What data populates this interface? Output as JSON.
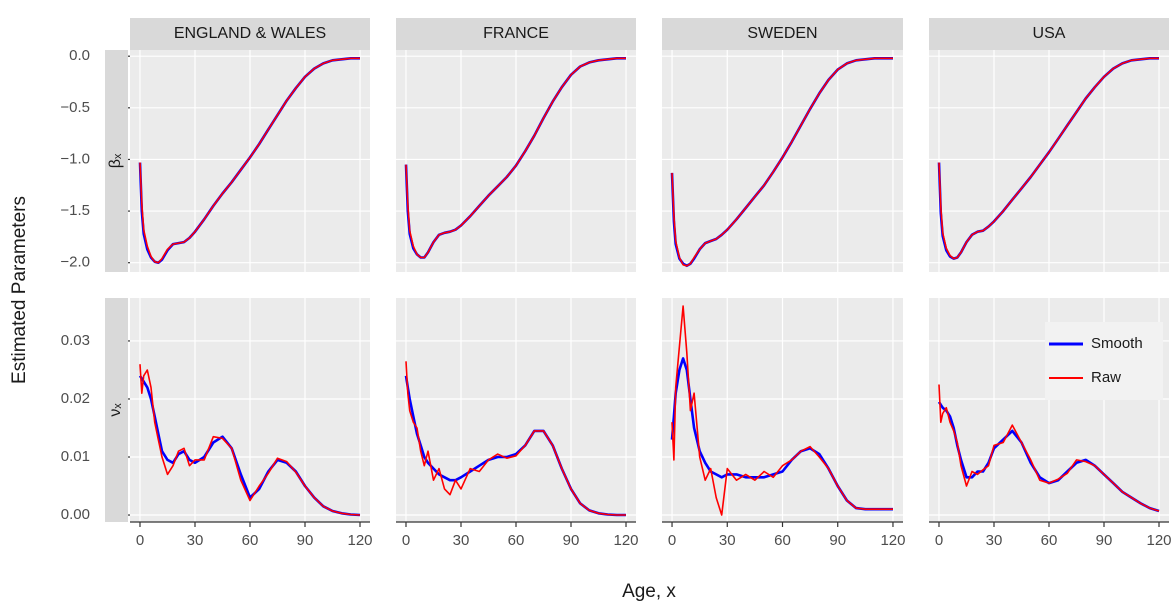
{
  "x_label": "Age, x",
  "y_label": "Estimated Parameters",
  "chart_data": [
    {
      "type": "line",
      "title": "ENGLAND & WALES",
      "row_label": "βₓ",
      "grid": true,
      "x": [
        0,
        1,
        2,
        4,
        6,
        8,
        10,
        12,
        15,
        18,
        21,
        24,
        27,
        30,
        35,
        40,
        45,
        50,
        55,
        60,
        65,
        70,
        75,
        80,
        85,
        90,
        95,
        100,
        105,
        110,
        115,
        120
      ],
      "xlim": [
        -5.45,
        125.45
      ],
      "ylim": [
        -2.09,
        0.06
      ],
      "xticks": [
        0,
        30,
        60,
        90,
        120
      ],
      "yticks": [
        {
          "value": -2,
          "label": "−2.0"
        },
        {
          "value": -1.5,
          "label": "−1.5"
        },
        {
          "value": -1,
          "label": "−1.0"
        },
        {
          "value": -0.5,
          "label": "−0.5"
        },
        {
          "value": 0,
          "label": "0.0"
        }
      ],
      "series": [
        {
          "color": "#0000ff",
          "values": [
            -1.03,
            -1.5,
            -1.72,
            -1.87,
            -1.95,
            -1.99,
            -2.0,
            -1.97,
            -1.88,
            -1.82,
            -1.81,
            -1.8,
            -1.76,
            -1.7,
            -1.58,
            -1.45,
            -1.33,
            -1.22,
            -1.1,
            -0.98,
            -0.85,
            -0.71,
            -0.57,
            -0.43,
            -0.31,
            -0.2,
            -0.12,
            -0.07,
            -0.04,
            -0.03,
            -0.02,
            -0.02
          ]
        },
        {
          "color": "#ff0000",
          "values": [
            -1.03,
            -1.43,
            -1.68,
            -1.84,
            -1.94,
            -1.99,
            -2.0,
            -1.96,
            -1.87,
            -1.82,
            -1.81,
            -1.8,
            -1.76,
            -1.7,
            -1.58,
            -1.45,
            -1.33,
            -1.22,
            -1.1,
            -0.98,
            -0.85,
            -0.71,
            -0.57,
            -0.43,
            -0.31,
            -0.2,
            -0.12,
            -0.07,
            -0.04,
            -0.03,
            -0.02,
            -0.02
          ]
        }
      ]
    },
    {
      "type": "line",
      "title": "FRANCE",
      "grid": true,
      "x": [
        0,
        1,
        2,
        4,
        6,
        8,
        10,
        12,
        15,
        18,
        21,
        24,
        27,
        30,
        35,
        40,
        45,
        50,
        55,
        60,
        65,
        70,
        75,
        80,
        85,
        90,
        95,
        100,
        105,
        110,
        115,
        120
      ],
      "xlim": [
        -5.45,
        125.45
      ],
      "ylim": [
        -2.09,
        0.06
      ],
      "xticks": [
        0,
        30,
        60,
        90,
        120
      ],
      "yticks": [
        {
          "value": -2,
          "label": "−2.0"
        },
        {
          "value": -1.5,
          "label": "−1.5"
        },
        {
          "value": -1,
          "label": "−1.0"
        },
        {
          "value": -0.5,
          "label": "−0.5"
        },
        {
          "value": 0,
          "label": "0.0"
        }
      ],
      "series": [
        {
          "color": "#0000ff",
          "values": [
            -1.05,
            -1.5,
            -1.72,
            -1.86,
            -1.92,
            -1.95,
            -1.95,
            -1.9,
            -1.8,
            -1.73,
            -1.71,
            -1.7,
            -1.68,
            -1.64,
            -1.55,
            -1.45,
            -1.35,
            -1.26,
            -1.17,
            -1.06,
            -0.92,
            -0.77,
            -0.6,
            -0.44,
            -0.3,
            -0.18,
            -0.1,
            -0.06,
            -0.04,
            -0.03,
            -0.02,
            -0.02
          ]
        },
        {
          "color": "#ff0000",
          "values": [
            -1.05,
            -1.44,
            -1.69,
            -1.84,
            -1.92,
            -1.95,
            -1.95,
            -1.9,
            -1.8,
            -1.73,
            -1.71,
            -1.7,
            -1.68,
            -1.64,
            -1.55,
            -1.45,
            -1.35,
            -1.26,
            -1.17,
            -1.06,
            -0.92,
            -0.77,
            -0.6,
            -0.44,
            -0.3,
            -0.18,
            -0.1,
            -0.06,
            -0.04,
            -0.03,
            -0.02,
            -0.02
          ]
        }
      ]
    },
    {
      "type": "line",
      "title": "SWEDEN",
      "grid": true,
      "x": [
        0,
        1,
        2,
        4,
        6,
        8,
        10,
        12,
        15,
        18,
        21,
        24,
        27,
        30,
        35,
        40,
        45,
        50,
        55,
        60,
        65,
        70,
        75,
        80,
        85,
        90,
        95,
        100,
        105,
        110,
        115,
        120
      ],
      "xlim": [
        -5.45,
        125.45
      ],
      "ylim": [
        -2.09,
        0.06
      ],
      "xticks": [
        0,
        30,
        60,
        90,
        120
      ],
      "yticks": [
        {
          "value": -2,
          "label": "−2.0"
        },
        {
          "value": -1.5,
          "label": "−1.5"
        },
        {
          "value": -1,
          "label": "−1.0"
        },
        {
          "value": -0.5,
          "label": "−0.5"
        },
        {
          "value": 0,
          "label": "0.0"
        }
      ],
      "series": [
        {
          "color": "#0000ff",
          "values": [
            -1.13,
            -1.6,
            -1.82,
            -1.96,
            -2.01,
            -2.03,
            -2.01,
            -1.96,
            -1.87,
            -1.81,
            -1.79,
            -1.77,
            -1.73,
            -1.68,
            -1.58,
            -1.47,
            -1.36,
            -1.25,
            -1.12,
            -0.98,
            -0.83,
            -0.67,
            -0.51,
            -0.36,
            -0.23,
            -0.13,
            -0.07,
            -0.04,
            -0.03,
            -0.02,
            -0.02,
            -0.02
          ]
        },
        {
          "color": "#ff0000",
          "values": [
            -1.13,
            -1.55,
            -1.79,
            -1.95,
            -2.02,
            -2.03,
            -2.01,
            -1.95,
            -1.87,
            -1.81,
            -1.79,
            -1.77,
            -1.73,
            -1.68,
            -1.58,
            -1.47,
            -1.36,
            -1.25,
            -1.12,
            -0.98,
            -0.83,
            -0.67,
            -0.51,
            -0.36,
            -0.23,
            -0.13,
            -0.07,
            -0.04,
            -0.03,
            -0.02,
            -0.02,
            -0.02
          ]
        }
      ]
    },
    {
      "type": "line",
      "title": "USA",
      "grid": true,
      "x": [
        0,
        1,
        2,
        4,
        6,
        8,
        10,
        12,
        15,
        18,
        21,
        24,
        27,
        30,
        35,
        40,
        45,
        50,
        55,
        60,
        65,
        70,
        75,
        80,
        85,
        90,
        95,
        100,
        105,
        110,
        115,
        120
      ],
      "xlim": [
        -5.45,
        125.45
      ],
      "ylim": [
        -2.09,
        0.06
      ],
      "xticks": [
        0,
        30,
        60,
        90,
        120
      ],
      "yticks": [
        {
          "value": -2,
          "label": "−2.0"
        },
        {
          "value": -1.5,
          "label": "−1.5"
        },
        {
          "value": -1,
          "label": "−1.0"
        },
        {
          "value": -0.5,
          "label": "−0.5"
        },
        {
          "value": 0,
          "label": "0.0"
        }
      ],
      "series": [
        {
          "color": "#0000ff",
          "values": [
            -1.03,
            -1.52,
            -1.74,
            -1.88,
            -1.94,
            -1.96,
            -1.95,
            -1.9,
            -1.8,
            -1.73,
            -1.7,
            -1.69,
            -1.65,
            -1.6,
            -1.5,
            -1.39,
            -1.28,
            -1.17,
            -1.05,
            -0.93,
            -0.8,
            -0.67,
            -0.54,
            -0.41,
            -0.3,
            -0.2,
            -0.12,
            -0.07,
            -0.04,
            -0.03,
            -0.02,
            -0.02
          ]
        },
        {
          "color": "#ff0000",
          "values": [
            -1.03,
            -1.46,
            -1.71,
            -1.86,
            -1.93,
            -1.96,
            -1.95,
            -1.9,
            -1.8,
            -1.73,
            -1.7,
            -1.69,
            -1.65,
            -1.6,
            -1.5,
            -1.39,
            -1.28,
            -1.17,
            -1.05,
            -0.93,
            -0.8,
            -0.67,
            -0.54,
            -0.41,
            -0.3,
            -0.2,
            -0.12,
            -0.07,
            -0.04,
            -0.03,
            -0.02,
            -0.02
          ]
        }
      ]
    },
    {
      "type": "line",
      "row_label": "νₓ",
      "grid": true,
      "x": [
        0,
        1,
        2,
        4,
        6,
        8,
        10,
        12,
        15,
        18,
        21,
        24,
        27,
        30,
        35,
        40,
        45,
        50,
        55,
        60,
        65,
        70,
        75,
        80,
        85,
        90,
        95,
        100,
        105,
        110,
        115,
        120
      ],
      "xlim": [
        -5.45,
        125.45
      ],
      "ylim": [
        -0.0012,
        0.0374
      ],
      "xticks": [
        0,
        30,
        60,
        90,
        120
      ],
      "yticks": [
        {
          "value": 0,
          "label": "0.00"
        },
        {
          "value": 0.01,
          "label": "0.01"
        },
        {
          "value": 0.02,
          "label": "0.02"
        },
        {
          "value": 0.03,
          "label": "0.03"
        }
      ],
      "series": [
        {
          "color": "#0000ff",
          "values": [
            0.024,
            0.0235,
            0.023,
            0.022,
            0.02,
            0.017,
            0.014,
            0.011,
            0.0095,
            0.009,
            0.0105,
            0.011,
            0.0095,
            0.009,
            0.01,
            0.0125,
            0.0135,
            0.0115,
            0.007,
            0.003,
            0.0045,
            0.0075,
            0.0095,
            0.009,
            0.0075,
            0.005,
            0.003,
            0.0015,
            0.0007,
            0.0003,
            0.0001,
            0
          ]
        },
        {
          "color": "#ff0000",
          "values": [
            0.026,
            0.021,
            0.024,
            0.025,
            0.022,
            0.016,
            0.013,
            0.01,
            0.007,
            0.0085,
            0.011,
            0.0115,
            0.0085,
            0.0095,
            0.0095,
            0.0135,
            0.0132,
            0.0115,
            0.006,
            0.0025,
            0.005,
            0.0072,
            0.0098,
            0.0092,
            0.0074,
            0.005,
            0.003,
            0.0015,
            0.0007,
            0.0003,
            0.0001,
            0
          ]
        }
      ]
    },
    {
      "type": "line",
      "grid": true,
      "x": [
        0,
        1,
        2,
        4,
        6,
        8,
        10,
        12,
        15,
        18,
        21,
        24,
        27,
        30,
        35,
        40,
        45,
        50,
        55,
        60,
        65,
        70,
        75,
        80,
        85,
        90,
        95,
        100,
        105,
        110,
        115,
        120
      ],
      "xlim": [
        -5.45,
        125.45
      ],
      "ylim": [
        -0.0012,
        0.0374
      ],
      "xticks": [
        0,
        30,
        60,
        90,
        120
      ],
      "yticks": [
        {
          "value": 0,
          "label": "0.00"
        },
        {
          "value": 0.01,
          "label": "0.01"
        },
        {
          "value": 0.02,
          "label": "0.02"
        },
        {
          "value": 0.03,
          "label": "0.03"
        }
      ],
      "series": [
        {
          "color": "#0000ff",
          "values": [
            0.024,
            0.022,
            0.02,
            0.017,
            0.014,
            0.012,
            0.01,
            0.009,
            0.008,
            0.007,
            0.0065,
            0.006,
            0.006,
            0.0065,
            0.0075,
            0.0085,
            0.0095,
            0.01,
            0.01,
            0.0105,
            0.012,
            0.0145,
            0.0145,
            0.012,
            0.008,
            0.0045,
            0.002,
            0.0008,
            0.0003,
            0.0001,
            0,
            0
          ]
        },
        {
          "color": "#ff0000",
          "values": [
            0.0265,
            0.021,
            0.018,
            0.016,
            0.015,
            0.011,
            0.0085,
            0.011,
            0.006,
            0.008,
            0.0045,
            0.0035,
            0.006,
            0.0045,
            0.008,
            0.0075,
            0.0095,
            0.0105,
            0.0098,
            0.0102,
            0.012,
            0.0145,
            0.0145,
            0.012,
            0.008,
            0.0045,
            0.002,
            0.0008,
            0.0003,
            0.0001,
            0,
            0
          ]
        }
      ]
    },
    {
      "type": "line",
      "grid": true,
      "x": [
        0,
        1,
        2,
        4,
        6,
        8,
        10,
        12,
        15,
        18,
        21,
        24,
        27,
        30,
        35,
        40,
        45,
        50,
        55,
        60,
        65,
        70,
        75,
        80,
        85,
        90,
        95,
        100,
        105,
        110,
        115,
        120
      ],
      "xlim": [
        -5.45,
        125.45
      ],
      "ylim": [
        -0.0012,
        0.0374
      ],
      "xticks": [
        0,
        30,
        60,
        90,
        120
      ],
      "yticks": [
        {
          "value": 0,
          "label": "0.00"
        },
        {
          "value": 0.01,
          "label": "0.01"
        },
        {
          "value": 0.02,
          "label": "0.02"
        },
        {
          "value": 0.03,
          "label": "0.03"
        }
      ],
      "series": [
        {
          "color": "#0000ff",
          "values": [
            0.013,
            0.017,
            0.021,
            0.025,
            0.027,
            0.025,
            0.02,
            0.015,
            0.011,
            0.009,
            0.0075,
            0.007,
            0.0065,
            0.007,
            0.007,
            0.0065,
            0.0065,
            0.0065,
            0.007,
            0.0075,
            0.0095,
            0.011,
            0.0115,
            0.0105,
            0.008,
            0.005,
            0.0025,
            0.0012,
            0.001,
            0.001,
            0.001,
            0.001
          ]
        },
        {
          "color": "#ff0000",
          "values": [
            0.016,
            0.0095,
            0.022,
            0.029,
            0.036,
            0.028,
            0.018,
            0.021,
            0.01,
            0.006,
            0.008,
            0.003,
            0,
            0.008,
            0.006,
            0.007,
            0.006,
            0.0075,
            0.0065,
            0.0085,
            0.0095,
            0.011,
            0.0118,
            0.01,
            0.008,
            0.005,
            0.0025,
            0.0012,
            0.001,
            0.001,
            0.001,
            0.001
          ]
        }
      ]
    },
    {
      "type": "line",
      "grid": true,
      "legend": "right",
      "x": [
        0,
        1,
        2,
        4,
        6,
        8,
        10,
        12,
        15,
        18,
        21,
        24,
        27,
        30,
        35,
        40,
        45,
        50,
        55,
        60,
        65,
        70,
        75,
        80,
        85,
        90,
        95,
        100,
        105,
        110,
        115,
        120
      ],
      "xlim": [
        -5.45,
        125.45
      ],
      "ylim": [
        -0.0012,
        0.0374
      ],
      "xticks": [
        0,
        30,
        60,
        90,
        120
      ],
      "yticks": [
        {
          "value": 0,
          "label": "0.00"
        },
        {
          "value": 0.01,
          "label": "0.01"
        },
        {
          "value": 0.02,
          "label": "0.02"
        },
        {
          "value": 0.03,
          "label": "0.03"
        }
      ],
      "series": [
        {
          "name": "Smooth",
          "color": "#0000ff",
          "values": [
            0.0195,
            0.019,
            0.0185,
            0.018,
            0.017,
            0.015,
            0.012,
            0.0095,
            0.0065,
            0.0065,
            0.0075,
            0.0075,
            0.009,
            0.0115,
            0.013,
            0.0145,
            0.0125,
            0.009,
            0.0065,
            0.0055,
            0.006,
            0.0075,
            0.009,
            0.0095,
            0.0085,
            0.007,
            0.0055,
            0.004,
            0.003,
            0.002,
            0.0012,
            0.0007
          ]
        },
        {
          "name": "Raw",
          "color": "#ff0000",
          "values": [
            0.0225,
            0.016,
            0.0175,
            0.0185,
            0.016,
            0.0145,
            0.0125,
            0.0085,
            0.005,
            0.0075,
            0.007,
            0.0078,
            0.0085,
            0.012,
            0.0125,
            0.0155,
            0.0125,
            0.0095,
            0.006,
            0.0055,
            0.0062,
            0.0072,
            0.0095,
            0.0092,
            0.0085,
            0.007,
            0.0055,
            0.004,
            0.003,
            0.002,
            0.0012,
            0.0007
          ]
        }
      ]
    }
  ]
}
